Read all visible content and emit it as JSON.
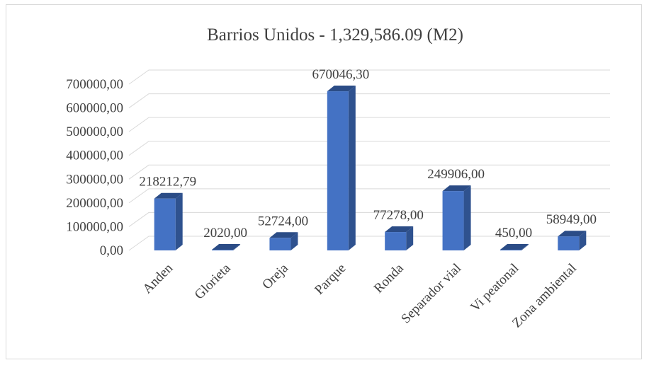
{
  "chart_data": {
    "type": "bar",
    "title": "Barrios Unidos - 1,329,586.09 (M2)",
    "xlabel": "",
    "ylabel": "",
    "categories": [
      "Anden",
      "Glorieta",
      "Oreja",
      "Parque",
      "Ronda",
      "Separador vial",
      "Vi peatonal",
      "Zona ambiental"
    ],
    "values": [
      218212.79,
      2020.0,
      52724.0,
      670046.3,
      77278.0,
      249906.0,
      450.0,
      58949.0
    ],
    "data_labels": [
      "218212,79",
      "2020,00",
      "52724,00",
      "670046,30",
      "77278,00",
      "249906,00",
      "450,00",
      "58949,00"
    ],
    "ylim": [
      0,
      700000
    ],
    "yticks": [
      "0,00",
      "100000,00",
      "200000,00",
      "300000,00",
      "400000,00",
      "500000,00",
      "600000,00",
      "700000,00"
    ],
    "grid": true,
    "style": "3d-column",
    "colors": {
      "bar_front": "#4472c4",
      "bar_side": "#2f528f",
      "bar_top": "#2b4c86",
      "grid": "#d9d9d9",
      "text": "#404040"
    }
  }
}
